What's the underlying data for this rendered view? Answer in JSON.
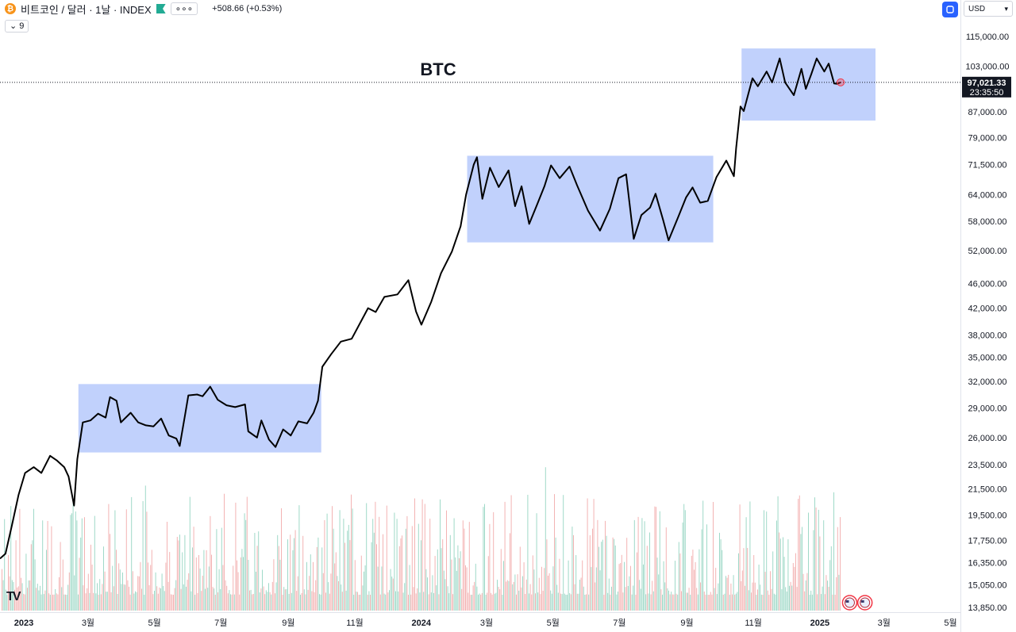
{
  "header": {
    "coin_icon": "bitcoin-icon",
    "symbol": "비트코인 / 달러 · 1날 · INDEX",
    "more": "∘∘∘",
    "change": "+508.66 (+0.53%)"
  },
  "indicator_toggle": {
    "label": "9"
  },
  "currency": {
    "label": "USD"
  },
  "colors": {
    "line": "#000000",
    "box": "#b6c9fb",
    "up_vol": "#9fd9c8",
    "down_vol": "#f3b3b3",
    "accent": "#2962ff"
  },
  "chart_data": {
    "type": "line",
    "title": "BTC",
    "y_scale": "log",
    "ylim": [
      13000,
      122000
    ],
    "yticks": [
      "115,000.00",
      "103,000.00",
      "87,000.00",
      "79,000.00",
      "71,500.00",
      "64,000.00",
      "58,000.00",
      "52,000.00",
      "46,000.00",
      "42,000.00",
      "38,000.00",
      "35,000.00",
      "32,000.00",
      "29,000.00",
      "26,000.00",
      "23,500.00",
      "21,500.00",
      "19,500.00",
      "17,750.00",
      "16,350.00",
      "15,050.00",
      "13,850.00"
    ],
    "xticks": [
      "2023",
      "3월",
      "5월",
      "7월",
      "9월",
      "11월",
      "2024",
      "3월",
      "5월",
      "7월",
      "9월",
      "11월",
      "2025",
      "3월",
      "5월"
    ],
    "x_range": [
      "2023-01-01",
      "2025-06-01"
    ],
    "last_price": "97,021.33",
    "countdown": "23:35:50",
    "series": [
      {
        "values": [
          [
            "2023-01-01",
            16600
          ],
          [
            "2023-01-06",
            16900
          ],
          [
            "2023-01-12",
            18800
          ],
          [
            "2023-01-18",
            21000
          ],
          [
            "2023-01-24",
            22800
          ],
          [
            "2023-02-01",
            23300
          ],
          [
            "2023-02-08",
            22800
          ],
          [
            "2023-02-16",
            24300
          ],
          [
            "2023-02-22",
            23900
          ],
          [
            "2023-03-01",
            23300
          ],
          [
            "2023-03-05",
            22500
          ],
          [
            "2023-03-10",
            20200
          ],
          [
            "2023-03-13",
            24000
          ],
          [
            "2023-03-18",
            27500
          ],
          [
            "2023-03-25",
            27700
          ],
          [
            "2023-04-01",
            28400
          ],
          [
            "2023-04-08",
            28000
          ],
          [
            "2023-04-12",
            30200
          ],
          [
            "2023-04-18",
            29800
          ],
          [
            "2023-04-22",
            27500
          ],
          [
            "2023-05-01",
            28500
          ],
          [
            "2023-05-08",
            27500
          ],
          [
            "2023-05-15",
            27200
          ],
          [
            "2023-05-22",
            27100
          ],
          [
            "2023-05-29",
            27900
          ],
          [
            "2023-06-05",
            26200
          ],
          [
            "2023-06-12",
            25900
          ],
          [
            "2023-06-15",
            25200
          ],
          [
            "2023-06-20",
            28300
          ],
          [
            "2023-06-23",
            30400
          ],
          [
            "2023-07-01",
            30500
          ],
          [
            "2023-07-06",
            30300
          ],
          [
            "2023-07-13",
            31400
          ],
          [
            "2023-07-20",
            29900
          ],
          [
            "2023-07-28",
            29300
          ],
          [
            "2023-08-05",
            29100
          ],
          [
            "2023-08-14",
            29400
          ],
          [
            "2023-08-17",
            26600
          ],
          [
            "2023-08-25",
            26000
          ],
          [
            "2023-08-29",
            27700
          ],
          [
            "2023-09-05",
            25800
          ],
          [
            "2023-09-11",
            25100
          ],
          [
            "2023-09-18",
            26800
          ],
          [
            "2023-09-25",
            26200
          ],
          [
            "2023-10-02",
            27600
          ],
          [
            "2023-10-10",
            27400
          ],
          [
            "2023-10-16",
            28500
          ],
          [
            "2023-10-20",
            29800
          ],
          [
            "2023-10-24",
            33800
          ],
          [
            "2023-11-01",
            35400
          ],
          [
            "2023-11-10",
            37100
          ],
          [
            "2023-11-20",
            37500
          ],
          [
            "2023-12-05",
            42000
          ],
          [
            "2023-12-12",
            41400
          ],
          [
            "2023-12-20",
            43800
          ],
          [
            "2024-01-01",
            44200
          ],
          [
            "2024-01-11",
            46600
          ],
          [
            "2024-01-18",
            41500
          ],
          [
            "2024-01-23",
            39500
          ],
          [
            "2024-02-01",
            43000
          ],
          [
            "2024-02-10",
            47800
          ],
          [
            "2024-02-20",
            51800
          ],
          [
            "2024-02-28",
            56900
          ],
          [
            "2024-03-04",
            64000
          ],
          [
            "2024-03-11",
            71500
          ],
          [
            "2024-03-14",
            73500
          ],
          [
            "2024-03-19",
            63000
          ],
          [
            "2024-03-26",
            70700
          ],
          [
            "2024-04-03",
            65800
          ],
          [
            "2024-04-12",
            70000
          ],
          [
            "2024-04-18",
            61300
          ],
          [
            "2024-04-24",
            66000
          ],
          [
            "2024-05-01",
            57400
          ],
          [
            "2024-05-08",
            61500
          ],
          [
            "2024-05-15",
            66000
          ],
          [
            "2024-05-21",
            71300
          ],
          [
            "2024-05-29",
            68000
          ],
          [
            "2024-06-07",
            71000
          ],
          [
            "2024-06-14",
            66200
          ],
          [
            "2024-06-24",
            60300
          ],
          [
            "2024-07-05",
            56000
          ],
          [
            "2024-07-14",
            60700
          ],
          [
            "2024-07-22",
            68000
          ],
          [
            "2024-07-29",
            69000
          ],
          [
            "2024-08-05",
            54300
          ],
          [
            "2024-08-12",
            59300
          ],
          [
            "2024-08-20",
            61000
          ],
          [
            "2024-08-25",
            64200
          ],
          [
            "2024-09-01",
            58200
          ],
          [
            "2024-09-06",
            54000
          ],
          [
            "2024-09-15",
            59000
          ],
          [
            "2024-09-22",
            63300
          ],
          [
            "2024-09-28",
            65700
          ],
          [
            "2024-10-05",
            62100
          ],
          [
            "2024-10-12",
            62500
          ],
          [
            "2024-10-20",
            68300
          ],
          [
            "2024-10-29",
            72600
          ],
          [
            "2024-11-05",
            68500
          ],
          [
            "2024-11-07",
            76000
          ],
          [
            "2024-11-11",
            88700
          ],
          [
            "2024-11-14",
            87200
          ],
          [
            "2024-11-22",
            98500
          ],
          [
            "2024-11-27",
            95600
          ],
          [
            "2024-12-05",
            101000
          ],
          [
            "2024-12-10",
            97000
          ],
          [
            "2024-12-17",
            106000
          ],
          [
            "2024-12-22",
            97000
          ],
          [
            "2024-12-30",
            92500
          ],
          [
            "2025-01-06",
            102000
          ],
          [
            "2025-01-10",
            94700
          ],
          [
            "2025-01-15",
            100000
          ],
          [
            "2025-01-20",
            106000
          ],
          [
            "2025-01-27",
            101000
          ],
          [
            "2025-01-31",
            104000
          ],
          [
            "2025-02-05",
            96600
          ],
          [
            "2025-02-08",
            96500
          ],
          [
            "2025-02-11",
            97021
          ]
        ]
      }
    ],
    "boxes": [
      {
        "x_start": "2023-03-14",
        "x_end": "2023-10-23",
        "y_low": 24600,
        "y_high": 31700
      },
      {
        "x_start": "2024-03-05",
        "x_end": "2024-10-17",
        "y_low": 53600,
        "y_high": 73900
      },
      {
        "x_start": "2024-11-12",
        "x_end": "2025-03-15",
        "y_low": 84200,
        "y_high": 110000
      }
    ],
    "volume": {
      "up_color": "#9fd9c8",
      "down_color": "#f3b3b3"
    },
    "event_markers": [
      {
        "date": "2025-02-12",
        "icon": "us-flag-event-icon"
      },
      {
        "date": "2025-02-26",
        "icon": "us-flag-event-icon"
      }
    ]
  }
}
